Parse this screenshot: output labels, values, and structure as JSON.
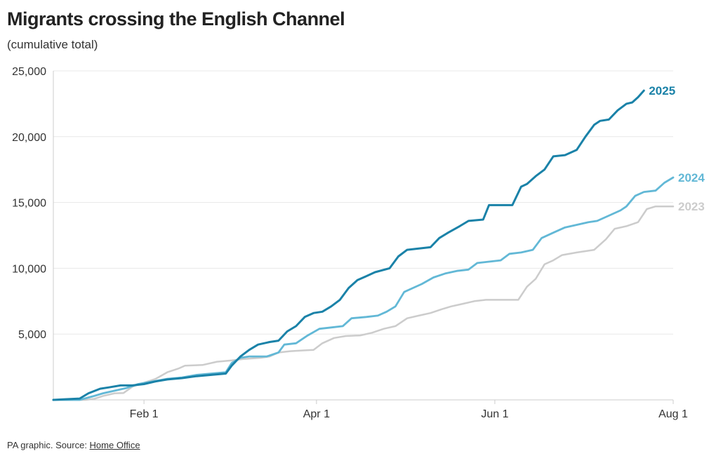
{
  "title": "Migrants crossing the English Channel",
  "subtitle": "(cumulative total)",
  "footer": {
    "prefix": "PA graphic. Source: ",
    "link": "Home Office"
  },
  "colors": {
    "2025": "#1a82a8",
    "2024": "#62b8d6",
    "2023": "#cccccc",
    "grid": "#e8e8e8",
    "axis": "#cccccc"
  },
  "chart_data": {
    "type": "line",
    "title": "Migrants crossing the English Channel",
    "subtitle": "(cumulative total)",
    "x_unit": "day of year",
    "xlim": [
      "Jan 1",
      "Aug 1"
    ],
    "ylim": [
      0,
      25000
    ],
    "grid": true,
    "legend": "direct labels at line ends (right)",
    "yticks": [
      {
        "value": 5000,
        "label": "5,000"
      },
      {
        "value": 10000,
        "label": "10,000"
      },
      {
        "value": 15000,
        "label": "15,000"
      },
      {
        "value": 20000,
        "label": "20,000"
      },
      {
        "value": 25000,
        "label": "25,000"
      }
    ],
    "xticks": [
      {
        "value": 32,
        "label": "Feb 1"
      },
      {
        "value": 91,
        "label": "Apr 1"
      },
      {
        "value": 152,
        "label": "Jun 1"
      },
      {
        "value": 213,
        "label": "Aug 1"
      }
    ],
    "series": [
      {
        "name": "2023",
        "points": [
          [
            1,
            0
          ],
          [
            12,
            0
          ],
          [
            15,
            80
          ],
          [
            18,
            300
          ],
          [
            22,
            500
          ],
          [
            25,
            520
          ],
          [
            28,
            1000
          ],
          [
            32,
            1300
          ],
          [
            36,
            1600
          ],
          [
            40,
            2100
          ],
          [
            44,
            2400
          ],
          [
            46,
            2600
          ],
          [
            52,
            2650
          ],
          [
            57,
            2900
          ],
          [
            62,
            3000
          ],
          [
            66,
            3100
          ],
          [
            72,
            3200
          ],
          [
            75,
            3300
          ],
          [
            78,
            3600
          ],
          [
            82,
            3700
          ],
          [
            86,
            3750
          ],
          [
            90,
            3800
          ],
          [
            93,
            4300
          ],
          [
            97,
            4700
          ],
          [
            101,
            4850
          ],
          [
            106,
            4900
          ],
          [
            110,
            5100
          ],
          [
            114,
            5400
          ],
          [
            118,
            5600
          ],
          [
            122,
            6200
          ],
          [
            126,
            6400
          ],
          [
            130,
            6600
          ],
          [
            134,
            6900
          ],
          [
            137,
            7100
          ],
          [
            141,
            7300
          ],
          [
            145,
            7500
          ],
          [
            149,
            7600
          ],
          [
            155,
            7600
          ],
          [
            160,
            7600
          ],
          [
            163,
            8600
          ],
          [
            166,
            9200
          ],
          [
            169,
            10300
          ],
          [
            172,
            10600
          ],
          [
            175,
            11000
          ],
          [
            180,
            11200
          ],
          [
            186,
            11400
          ],
          [
            190,
            12200
          ],
          [
            193,
            13000
          ],
          [
            197,
            13200
          ],
          [
            201,
            13500
          ],
          [
            204,
            14500
          ],
          [
            207,
            14700
          ],
          [
            213,
            14700
          ]
        ]
      },
      {
        "name": "2024",
        "points": [
          [
            1,
            0
          ],
          [
            10,
            0
          ],
          [
            15,
            300
          ],
          [
            18,
            500
          ],
          [
            22,
            700
          ],
          [
            26,
            900
          ],
          [
            30,
            1200
          ],
          [
            35,
            1400
          ],
          [
            40,
            1600
          ],
          [
            45,
            1700
          ],
          [
            50,
            1900
          ],
          [
            55,
            2000
          ],
          [
            60,
            2100
          ],
          [
            62,
            2800
          ],
          [
            65,
            3200
          ],
          [
            68,
            3300
          ],
          [
            74,
            3300
          ],
          [
            78,
            3600
          ],
          [
            80,
            4200
          ],
          [
            84,
            4300
          ],
          [
            88,
            4900
          ],
          [
            92,
            5400
          ],
          [
            96,
            5500
          ],
          [
            100,
            5600
          ],
          [
            103,
            6200
          ],
          [
            108,
            6300
          ],
          [
            112,
            6400
          ],
          [
            115,
            6700
          ],
          [
            118,
            7100
          ],
          [
            121,
            8200
          ],
          [
            124,
            8500
          ],
          [
            127,
            8800
          ],
          [
            131,
            9300
          ],
          [
            135,
            9600
          ],
          [
            139,
            9800
          ],
          [
            143,
            9900
          ],
          [
            146,
            10400
          ],
          [
            150,
            10500
          ],
          [
            154,
            10600
          ],
          [
            157,
            11100
          ],
          [
            161,
            11200
          ],
          [
            165,
            11400
          ],
          [
            168,
            12300
          ],
          [
            172,
            12700
          ],
          [
            176,
            13100
          ],
          [
            180,
            13300
          ],
          [
            184,
            13500
          ],
          [
            187,
            13600
          ],
          [
            191,
            14000
          ],
          [
            195,
            14400
          ],
          [
            197,
            14700
          ],
          [
            200,
            15500
          ],
          [
            203,
            15800
          ],
          [
            207,
            15900
          ],
          [
            210,
            16500
          ],
          [
            213,
            16900
          ]
        ]
      },
      {
        "name": "2025",
        "points": [
          [
            1,
            0
          ],
          [
            5,
            50
          ],
          [
            10,
            100
          ],
          [
            13,
            500
          ],
          [
            17,
            850
          ],
          [
            20,
            950
          ],
          [
            24,
            1100
          ],
          [
            28,
            1100
          ],
          [
            32,
            1200
          ],
          [
            36,
            1400
          ],
          [
            40,
            1550
          ],
          [
            45,
            1650
          ],
          [
            50,
            1800
          ],
          [
            55,
            1900
          ],
          [
            60,
            2000
          ],
          [
            62,
            2600
          ],
          [
            65,
            3300
          ],
          [
            68,
            3800
          ],
          [
            71,
            4200
          ],
          [
            75,
            4400
          ],
          [
            78,
            4500
          ],
          [
            81,
            5200
          ],
          [
            84,
            5600
          ],
          [
            87,
            6300
          ],
          [
            90,
            6600
          ],
          [
            93,
            6700
          ],
          [
            96,
            7100
          ],
          [
            99,
            7600
          ],
          [
            102,
            8500
          ],
          [
            105,
            9100
          ],
          [
            108,
            9400
          ],
          [
            111,
            9700
          ],
          [
            116,
            10000
          ],
          [
            119,
            10900
          ],
          [
            122,
            11400
          ],
          [
            126,
            11500
          ],
          [
            130,
            11600
          ],
          [
            133,
            12300
          ],
          [
            136,
            12700
          ],
          [
            140,
            13200
          ],
          [
            143,
            13600
          ],
          [
            148,
            13700
          ],
          [
            150,
            14800
          ],
          [
            154,
            14800
          ],
          [
            158,
            14800
          ],
          [
            161,
            16200
          ],
          [
            163,
            16400
          ],
          [
            166,
            17000
          ],
          [
            169,
            17500
          ],
          [
            172,
            18500
          ],
          [
            176,
            18600
          ],
          [
            180,
            19000
          ],
          [
            183,
            20000
          ],
          [
            186,
            20900
          ],
          [
            188,
            21200
          ],
          [
            191,
            21300
          ],
          [
            194,
            22000
          ],
          [
            197,
            22500
          ],
          [
            199,
            22600
          ],
          [
            201,
            23000
          ],
          [
            203,
            23500
          ]
        ]
      }
    ]
  }
}
